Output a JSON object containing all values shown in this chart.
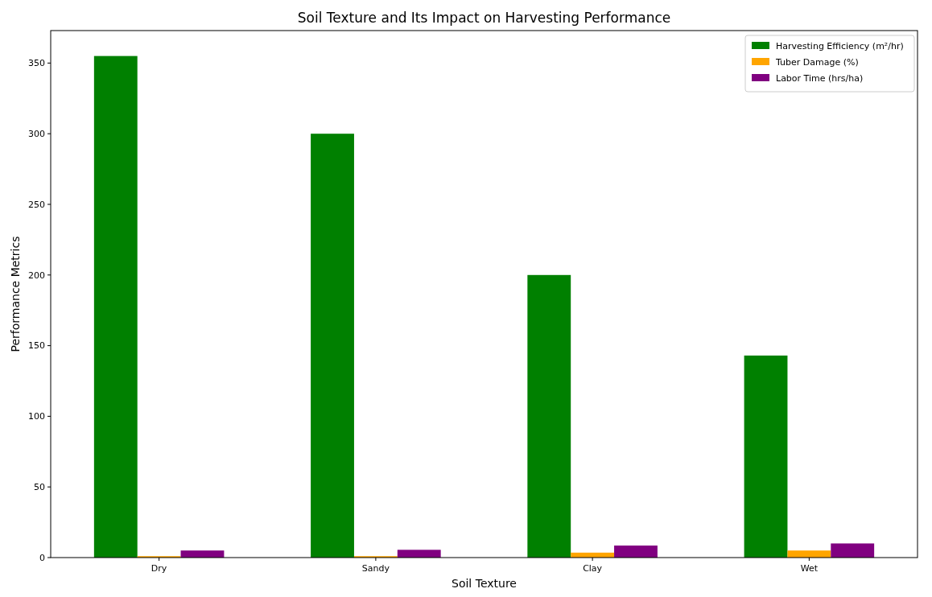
{
  "chart_data": {
    "type": "bar",
    "title": "Soil Texture and Its Impact on Harvesting Performance",
    "xlabel": "Soil Texture",
    "ylabel": "Performance Metrics",
    "categories": [
      "Dry",
      "Sandy",
      "Clay",
      "Wet"
    ],
    "series": [
      {
        "name": "Harvesting Efficiency (m²/hr)",
        "color": "#008000",
        "values": [
          355,
          300,
          200,
          143
        ]
      },
      {
        "name": "Tuber Damage (%)",
        "color": "#ffa500",
        "values": [
          1,
          1,
          3.5,
          5
        ]
      },
      {
        "name": "Labor Time (hrs/ha)",
        "color": "#800080",
        "values": [
          5,
          5.5,
          8.5,
          10
        ]
      }
    ],
    "ylim": [
      0,
      373
    ],
    "yticks": [
      0,
      50,
      100,
      150,
      200,
      250,
      300,
      350
    ],
    "legend": "top right"
  }
}
